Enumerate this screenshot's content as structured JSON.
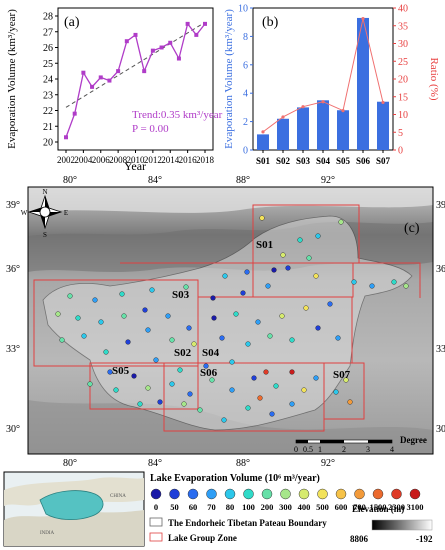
{
  "chart_data": [
    {
      "type": "line",
      "panel_label": "(a)",
      "xlabel": "Year",
      "ylabel": "Evaporation Volume (km³/year)",
      "x": [
        2002,
        2003,
        2004,
        2005,
        2006,
        2007,
        2008,
        2009,
        2010,
        2011,
        2012,
        2013,
        2014,
        2015,
        2016,
        2017,
        2018
      ],
      "series": [
        {
          "values": [
            20.3,
            21.8,
            24.4,
            23.5,
            24.1,
            23.9,
            24.5,
            26.4,
            26.8,
            24.5,
            25.8,
            26.0,
            26.3,
            25.3,
            27.5,
            26.8,
            27.5
          ],
          "color": "#b03cc8"
        }
      ],
      "trend": {
        "start": [
          2002,
          22.2
        ],
        "end": [
          2018,
          27.6
        ],
        "style": "dashed"
      },
      "xlim": [
        2002,
        2018
      ],
      "ylim": [
        20,
        28
      ],
      "xticks": [
        "2002",
        "2004",
        "2006",
        "2008",
        "2010",
        "2012",
        "2014",
        "2016",
        "2018"
      ],
      "yticks": [
        "20",
        "21",
        "22",
        "23",
        "24",
        "25",
        "26",
        "27",
        "28"
      ],
      "annotations": [
        "Trend:0.35 km³/year",
        "P = 0.00"
      ]
    },
    {
      "type": "bar",
      "panel_label": "(b)",
      "categories": [
        "S01",
        "S02",
        "S03",
        "S04",
        "S05",
        "S06",
        "S07"
      ],
      "series": [
        {
          "values": [
            1.1,
            2.2,
            3.0,
            3.5,
            2.8,
            9.3,
            3.4
          ],
          "color": "#3b6fe0",
          "axis": "left"
        },
        {
          "type": "line",
          "values": [
            5.1,
            9.3,
            12.2,
            13.6,
            11.1,
            37.0,
            13.4
          ],
          "color": "#f07070",
          "axis": "right"
        }
      ],
      "ylabel": "Evaporation Volume (km³/year)",
      "y2label": "Ratio (%)",
      "ylim": [
        0,
        10
      ],
      "y2lim": [
        0,
        40
      ],
      "yticks": [
        "0",
        "2",
        "4",
        "6",
        "8",
        "10"
      ],
      "y2ticks": [
        "0",
        "5",
        "10",
        "15",
        "20",
        "25",
        "30",
        "35",
        "40"
      ],
      "colors": {
        "left_axis": "#3b6fe0",
        "right_axis": "#e84040"
      }
    }
  ],
  "map": {
    "panel_label": "(c)",
    "lon_ticks": [
      "80°",
      "84°",
      "88°",
      "92°"
    ],
    "lat_ticks": [
      "39°",
      "36°",
      "33°",
      "30°"
    ],
    "zones": [
      "S01",
      "S02",
      "S03",
      "S04",
      "S05",
      "S06",
      "S07"
    ],
    "compass": {
      "n": "N",
      "s": "S",
      "e": "E",
      "w": "W"
    },
    "scalebar": {
      "labels": [
        "0",
        "0.5",
        "1",
        "2",
        "3",
        "4"
      ],
      "unit": "Degree"
    },
    "legend": {
      "title": "Lake Evaporation Volume (10⁶ m³/year)",
      "values": [
        "0",
        "50",
        "60",
        "70",
        "80",
        "100",
        "200",
        "300",
        "400",
        "500",
        "600",
        "700",
        "1500",
        "2300",
        "3100"
      ],
      "colors": [
        "#1a1aa8",
        "#1f3fd8",
        "#2a6cf0",
        "#2e9ef5",
        "#2cc7ea",
        "#2fdac8",
        "#66e0a8",
        "#a6e68a",
        "#d6ea6e",
        "#f2e25a",
        "#f6c248",
        "#f29a3a",
        "#ec6a2e",
        "#de3a26",
        "#c81c1c"
      ],
      "boundary_label": "The Endorheic Tibetan Pateau Boundary",
      "zone_label": "Lake Group Zone",
      "elevation_title": "Elevation (m)",
      "elevation_max": "8806",
      "elevation_min": "-192",
      "inset_labels": [
        "CHINA",
        "INDIA"
      ]
    }
  }
}
